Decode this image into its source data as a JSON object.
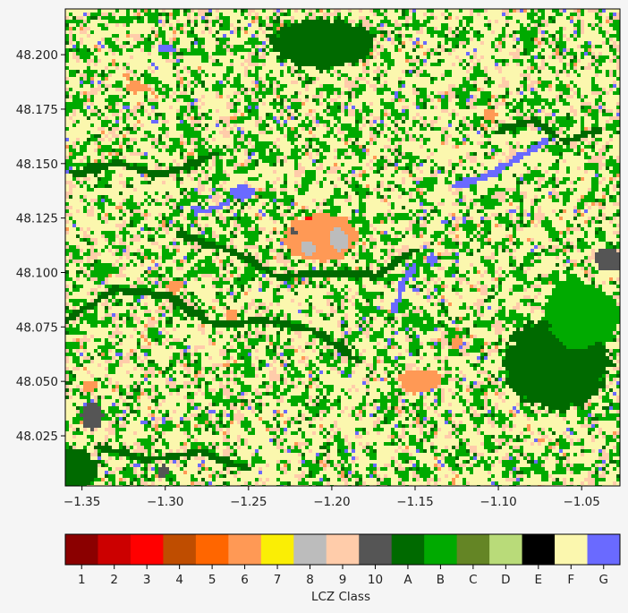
{
  "chart_data": {
    "type": "heatmap",
    "title": "",
    "xlabel": "",
    "ylabel": "",
    "xlim": [
      -1.36,
      -1.027
    ],
    "ylim": [
      48.002,
      48.221
    ],
    "grid": false,
    "x_ticks": [
      {
        "value": -1.35,
        "label": "−1.35"
      },
      {
        "value": -1.3,
        "label": "−1.30"
      },
      {
        "value": -1.25,
        "label": "−1.25"
      },
      {
        "value": -1.2,
        "label": "−1.20"
      },
      {
        "value": -1.15,
        "label": "−1.15"
      },
      {
        "value": -1.1,
        "label": "−1.10"
      },
      {
        "value": -1.05,
        "label": "−1.05"
      }
    ],
    "y_ticks": [
      {
        "value": 48.2,
        "label": "48.200"
      },
      {
        "value": 48.175,
        "label": "48.175"
      },
      {
        "value": 48.15,
        "label": "48.150"
      },
      {
        "value": 48.125,
        "label": "48.125"
      },
      {
        "value": 48.1,
        "label": "48.100"
      },
      {
        "value": 48.075,
        "label": "48.075"
      },
      {
        "value": 48.05,
        "label": "48.050"
      },
      {
        "value": 48.025,
        "label": "48.025"
      }
    ],
    "background_class": "F",
    "features": [
      {
        "cls": "A",
        "shape": "blob",
        "lon": -1.065,
        "lat": 48.058,
        "rlon": 0.034,
        "rlat": 0.023
      },
      {
        "cls": "B",
        "shape": "blob",
        "lon": -1.05,
        "lat": 48.08,
        "rlon": 0.024,
        "rlat": 0.016
      },
      {
        "cls": "10",
        "shape": "blob",
        "lon": -1.034,
        "lat": 48.106,
        "rlon": 0.009,
        "rlat": 0.006
      },
      {
        "cls": "A",
        "shape": "blob",
        "lon": -1.205,
        "lat": 48.205,
        "rlon": 0.035,
        "rlat": 0.012
      },
      {
        "cls": "A",
        "shape": "blob",
        "lon": -1.355,
        "lat": 48.01,
        "rlon": 0.016,
        "rlat": 0.01
      },
      {
        "cls": "6",
        "shape": "blob",
        "lon": -1.207,
        "lat": 48.116,
        "rlon": 0.024,
        "rlat": 0.012
      },
      {
        "cls": "8",
        "shape": "blob",
        "lon": -1.196,
        "lat": 48.115,
        "rlon": 0.006,
        "rlat": 0.006
      },
      {
        "cls": "8",
        "shape": "blob",
        "lon": -1.214,
        "lat": 48.111,
        "rlon": 0.005,
        "rlat": 0.004
      },
      {
        "cls": "10",
        "shape": "blob",
        "lon": -1.222,
        "lat": 48.118,
        "rlon": 0.003,
        "rlat": 0.003
      },
      {
        "cls": "3",
        "shape": "blob",
        "lon": -1.213,
        "lat": 48.125,
        "rlon": 0.003,
        "rlat": 0.0015
      },
      {
        "cls": "10",
        "shape": "blob",
        "lon": -1.344,
        "lat": 48.034,
        "rlon": 0.007,
        "rlat": 0.007
      },
      {
        "cls": "10",
        "shape": "blob",
        "lon": -1.302,
        "lat": 48.009,
        "rlon": 0.004,
        "rlat": 0.003
      },
      {
        "cls": "6",
        "shape": "blob",
        "lon": -1.147,
        "lat": 48.05,
        "rlon": 0.014,
        "rlat": 0.006
      },
      {
        "cls": "6",
        "shape": "blob",
        "lon": -1.294,
        "lat": 48.094,
        "rlon": 0.005,
        "rlat": 0.003
      },
      {
        "cls": "6",
        "shape": "blob",
        "lon": -1.317,
        "lat": 48.185,
        "rlon": 0.007,
        "rlat": 0.003
      },
      {
        "cls": "6",
        "shape": "blob",
        "lon": -1.105,
        "lat": 48.172,
        "rlon": 0.005,
        "rlat": 0.003
      },
      {
        "cls": "6",
        "shape": "blob",
        "lon": -1.345,
        "lat": 48.048,
        "rlon": 0.005,
        "rlat": 0.003
      },
      {
        "cls": "6",
        "shape": "blob",
        "lon": -1.26,
        "lat": 48.08,
        "rlon": 0.004,
        "rlat": 0.003
      },
      {
        "cls": "6",
        "shape": "blob",
        "lon": -1.125,
        "lat": 48.068,
        "rlon": 0.004,
        "rlat": 0.003
      },
      {
        "cls": "G",
        "shape": "blob",
        "lon": -1.254,
        "lat": 48.137,
        "rlon": 0.007,
        "rlat": 0.004
      },
      {
        "cls": "G",
        "shape": "blob",
        "lon": -1.3,
        "lat": 48.203,
        "rlon": 0.006,
        "rlat": 0.002
      },
      {
        "cls": "G",
        "shape": "blob",
        "lon": -1.14,
        "lat": 48.106,
        "rlon": 0.003,
        "rlat": 0.003
      },
      {
        "cls": "G",
        "shape": "line",
        "points": [
          [
            -1.127,
            48.14
          ],
          [
            -1.109,
            48.144
          ],
          [
            -1.09,
            48.152
          ],
          [
            -1.073,
            48.16
          ]
        ],
        "width": 0.0018
      },
      {
        "cls": "G",
        "shape": "line",
        "points": [
          [
            -1.163,
            48.082
          ],
          [
            -1.157,
            48.095
          ],
          [
            -1.15,
            48.103
          ]
        ],
        "width": 0.0018
      },
      {
        "cls": "G",
        "shape": "line",
        "points": [
          [
            -1.283,
            48.13
          ],
          [
            -1.275,
            48.128
          ],
          [
            -1.262,
            48.132
          ]
        ],
        "width": 0.0018
      },
      {
        "cls": "A",
        "shape": "line",
        "points": [
          [
            -1.36,
            48.078
          ],
          [
            -1.33,
            48.092
          ],
          [
            -1.3,
            48.09
          ],
          [
            -1.27,
            48.076
          ],
          [
            -1.24,
            48.078
          ],
          [
            -1.21,
            48.073
          ],
          [
            -1.185,
            48.06
          ]
        ],
        "width": 0.0022
      },
      {
        "cls": "A",
        "shape": "line",
        "points": [
          [
            -1.29,
            48.117
          ],
          [
            -1.26,
            48.11
          ],
          [
            -1.232,
            48.098
          ],
          [
            -1.205,
            48.1
          ],
          [
            -1.175,
            48.098
          ],
          [
            -1.15,
            48.11
          ]
        ],
        "width": 0.0022
      },
      {
        "cls": "A",
        "shape": "line",
        "points": [
          [
            -1.355,
            48.145
          ],
          [
            -1.33,
            48.15
          ],
          [
            -1.3,
            48.145
          ],
          [
            -1.27,
            48.155
          ]
        ],
        "width": 0.002
      },
      {
        "cls": "A",
        "shape": "line",
        "points": [
          [
            -1.1,
            48.165
          ],
          [
            -1.08,
            48.17
          ],
          [
            -1.06,
            48.16
          ],
          [
            -1.04,
            48.165
          ]
        ],
        "width": 0.002
      },
      {
        "cls": "A",
        "shape": "line",
        "points": [
          [
            -1.34,
            48.02
          ],
          [
            -1.31,
            48.014
          ],
          [
            -1.28,
            48.018
          ],
          [
            -1.25,
            48.01
          ]
        ],
        "width": 0.002
      }
    ],
    "noise_mix": [
      {
        "cls": "B",
        "w": 0.3
      },
      {
        "cls": "9",
        "w": 0.17
      },
      {
        "cls": "A",
        "w": 0.05
      },
      {
        "cls": "G",
        "w": 0.02
      },
      {
        "cls": "6",
        "w": 0.02
      }
    ],
    "legend": {
      "title": "LCZ Class",
      "placement": "bottom",
      "classes": [
        {
          "label": "1",
          "color": "#8b0000"
        },
        {
          "label": "2",
          "color": "#cc0000"
        },
        {
          "label": "3",
          "color": "#ff0000"
        },
        {
          "label": "4",
          "color": "#bf4d00"
        },
        {
          "label": "5",
          "color": "#ff6600"
        },
        {
          "label": "6",
          "color": "#ff9955"
        },
        {
          "label": "7",
          "color": "#faee05"
        },
        {
          "label": "8",
          "color": "#bcbcbc"
        },
        {
          "label": "9",
          "color": "#ffccaa"
        },
        {
          "label": "10",
          "color": "#555555"
        },
        {
          "label": "A",
          "color": "#006a00"
        },
        {
          "label": "B",
          "color": "#00aa00"
        },
        {
          "label": "C",
          "color": "#648525"
        },
        {
          "label": "D",
          "color": "#b9db79"
        },
        {
          "label": "E",
          "color": "#000000"
        },
        {
          "label": "F",
          "color": "#fbf7ae"
        },
        {
          "label": "G",
          "color": "#6a6aff"
        }
      ]
    }
  }
}
